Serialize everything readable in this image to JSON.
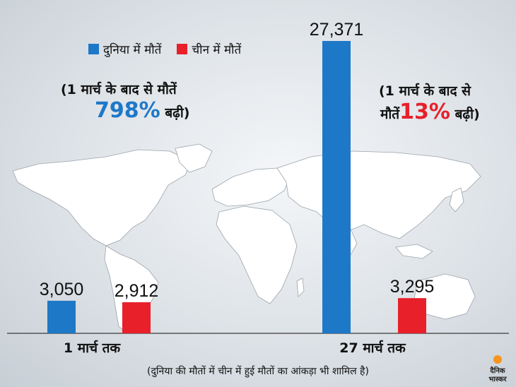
{
  "chart_data": {
    "type": "bar",
    "categories": [
      "1 मार्च तक",
      "27 मार्च तक"
    ],
    "series": [
      {
        "name": "दुनिया में मौतें",
        "color": "#1e78c8",
        "values": [
          3050,
          27371
        ],
        "labels": [
          "3,050",
          "27,371"
        ]
      },
      {
        "name": "चीन में मौतें",
        "color": "#e8202a",
        "values": [
          2912,
          3295
        ],
        "labels": [
          "2,912",
          "3,295"
        ]
      }
    ],
    "ylim": [
      0,
      27371
    ]
  },
  "notes": {
    "left": {
      "line1": "(1 मार्च के बाद से मौतें",
      "pct": "798%",
      "tail": "बढ़ी)",
      "pct_color": "#1e78c8"
    },
    "right": {
      "line1": "(1 मार्च के बाद से",
      "head": "मौतें",
      "pct": "13%",
      "tail": "बढ़ी)",
      "pct_color": "#e8202a"
    }
  },
  "footnote": "(दुनिया की मौतों में चीन में हुई मौतों का आंकड़ा भी शामिल है)",
  "logo": {
    "text1": "दैनिक",
    "text2": "भास्कर"
  }
}
